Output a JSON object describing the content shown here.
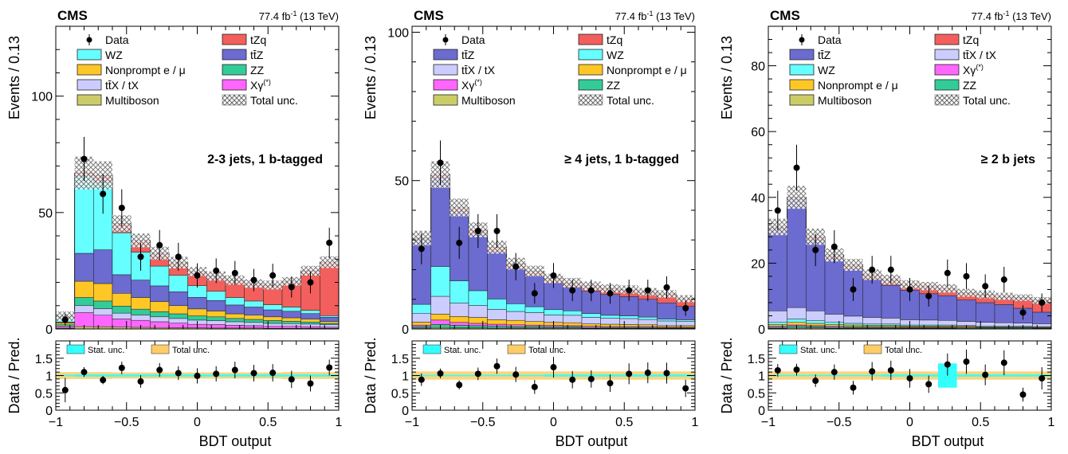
{
  "figure": {
    "experiment": "CMS",
    "lumi": "77.4 fb",
    "lumi_sup": "-1",
    "energy": "(13 TeV)"
  },
  "colors": {
    "tZq": "#f25f5c",
    "ttZ": "#6b6bd0",
    "WZ": "#66ffff",
    "Nonprompt": "#ffc726",
    "ttX": "#ccccff",
    "Xgamma": "#ff66ff",
    "ZZ": "#33cc99",
    "Multiboson": "#cccc66",
    "stat_unc": "#33ffff",
    "total_unc": "#ffcc66"
  },
  "legend_labels": {
    "Data": "Data",
    "tZq": "tZq",
    "ttZ": "tt̄Z",
    "WZ": "WZ",
    "Nonprompt": "Nonprompt e / μ",
    "ttX": "tt̄X / tX",
    "Xgamma": "Xγ",
    "Xgamma_sup": "(*)",
    "ZZ": "ZZ",
    "Multiboson": "Multiboson",
    "TotalUnc": "Total unc.",
    "stat_unc": "Stat. unc.",
    "total_unc": "Total unc."
  },
  "chart_data": [
    {
      "type": "bar",
      "region": "2-3 jets, 1 b-tagged",
      "xlabel": "BDT output",
      "ylabel": "Events / 0.13",
      "ratio_ylabel": "Data / Pred.",
      "xlim": [
        -1,
        1
      ],
      "ylim": [
        0,
        130
      ],
      "yticks": [
        0,
        50,
        100
      ],
      "ratio_ylim": [
        0,
        2
      ],
      "ratio_yticks": [
        0,
        0.5,
        1,
        1.5
      ],
      "xticks": [
        -1,
        -0.5,
        0,
        0.5,
        1
      ],
      "bin_edges": [
        -1.0,
        -0.867,
        -0.733,
        -0.6,
        -0.467,
        -0.333,
        -0.2,
        -0.067,
        0.067,
        0.2,
        0.333,
        0.467,
        0.6,
        0.733,
        0.867,
        1.0
      ],
      "legend": [
        "Data",
        "tZq",
        "WZ",
        "ttZ",
        "Nonprompt",
        "ZZ",
        "ttX",
        "Xgamma",
        "Multiboson",
        "TotalUnc"
      ],
      "series": [
        {
          "key": "Multiboson",
          "values": [
            0.3,
            1.0,
            0.9,
            0.8,
            0.7,
            0.6,
            0.5,
            0.5,
            0.4,
            0.4,
            0.4,
            0.3,
            0.3,
            0.3,
            0.3
          ]
        },
        {
          "key": "Xgamma",
          "values": [
            0.5,
            6.0,
            5.0,
            3.5,
            3.0,
            2.5,
            2.0,
            1.5,
            1.5,
            1.2,
            1.0,
            0.8,
            0.8,
            0.7,
            0.5
          ]
        },
        {
          "key": "ttX",
          "values": [
            0.5,
            3.0,
            2.8,
            2.5,
            2.3,
            2.1,
            2.0,
            1.8,
            1.7,
            1.5,
            1.4,
            1.3,
            1.2,
            1.1,
            1.0
          ]
        },
        {
          "key": "ZZ",
          "values": [
            0.5,
            3.5,
            3.3,
            3.0,
            2.5,
            2.2,
            2.0,
            1.8,
            1.6,
            1.4,
            1.3,
            1.2,
            1.0,
            0.9,
            0.6
          ]
        },
        {
          "key": "Nonprompt",
          "values": [
            0.8,
            7.0,
            7.5,
            5.5,
            5.0,
            4.4,
            3.5,
            3.0,
            2.5,
            2.0,
            1.8,
            1.6,
            1.5,
            1.2,
            0.8
          ]
        },
        {
          "key": "ttZ",
          "values": [
            0.4,
            12.0,
            14.5,
            8.0,
            7.5,
            6.7,
            6.0,
            5.0,
            4.5,
            3.8,
            3.5,
            3.0,
            2.8,
            2.4,
            1.8
          ]
        },
        {
          "key": "WZ",
          "values": [
            2.0,
            33.0,
            29.0,
            18.0,
            12.0,
            8.5,
            7.0,
            5.0,
            4.0,
            3.2,
            2.6,
            2.2,
            1.8,
            1.4,
            0.7
          ]
        },
        {
          "key": "tZq",
          "values": [
            0.5,
            1.5,
            3.0,
            4.0,
            5.0,
            5.5,
            5.5,
            6.0,
            6.5,
            7.5,
            7.5,
            8.5,
            11.0,
            17.0,
            23.0
          ]
        }
      ],
      "data": {
        "values": [
          4,
          73,
          58,
          52,
          31,
          36,
          31,
          23,
          25,
          24,
          21,
          23,
          18,
          20,
          37
        ],
        "errors": [
          2.5,
          9.5,
          8.5,
          8.0,
          6.0,
          6.5,
          6.0,
          5.2,
          5.3,
          5.2,
          4.8,
          5.0,
          4.5,
          4.7,
          6.5
        ]
      },
      "total_unc": [
        2.0,
        7.0,
        6.0,
        3.5,
        3.0,
        2.8,
        2.5,
        2.0,
        2.0,
        2.0,
        1.8,
        1.9,
        1.9,
        2.1,
        2.5
      ],
      "ratio": {
        "values": [
          0.58,
          1.1,
          0.87,
          1.22,
          0.83,
          1.16,
          1.07,
          0.99,
          1.05,
          1.16,
          1.07,
          1.08,
          0.89,
          0.77,
          1.23
        ],
        "errors": [
          0.35,
          0.14,
          0.12,
          0.18,
          0.18,
          0.2,
          0.2,
          0.22,
          0.22,
          0.24,
          0.24,
          0.25,
          0.25,
          0.23,
          0.23
        ],
        "stat_unc": [
          0.02,
          0.03,
          0.03,
          0.03,
          0.03,
          0.03,
          0.03,
          0.03,
          0.03,
          0.03,
          0.03,
          0.03,
          0.03,
          0.03,
          0.03
        ],
        "total_unc": [
          0.1,
          0.1,
          0.1,
          0.09,
          0.09,
          0.09,
          0.09,
          0.09,
          0.09,
          0.09,
          0.09,
          0.09,
          0.1,
          0.1,
          0.1
        ]
      }
    },
    {
      "type": "bar",
      "region": "≥ 4 jets, 1 b-tagged",
      "xlabel": "BDT output",
      "ylabel": "Events / 0.13",
      "ratio_ylabel": "Data / Pred.",
      "xlim": [
        -1,
        1
      ],
      "ylim": [
        0,
        102
      ],
      "yticks": [
        0,
        50,
        100
      ],
      "ratio_ylim": [
        0,
        2
      ],
      "ratio_yticks": [
        0,
        0.5,
        1,
        1.5
      ],
      "xticks": [
        -1,
        -0.5,
        0,
        0.5,
        1
      ],
      "bin_edges": [
        -1.0,
        -0.867,
        -0.733,
        -0.6,
        -0.467,
        -0.333,
        -0.2,
        -0.067,
        0.067,
        0.2,
        0.333,
        0.467,
        0.6,
        0.733,
        0.867,
        1.0
      ],
      "legend": [
        "Data",
        "tZq",
        "ttZ",
        "WZ",
        "ttX",
        "Nonprompt",
        "Xgamma",
        "ZZ",
        "Multiboson",
        "TotalUnc"
      ],
      "series": [
        {
          "key": "Multiboson",
          "values": [
            0.3,
            0.5,
            0.4,
            0.4,
            0.3,
            0.3,
            0.3,
            0.3,
            0.3,
            0.2,
            0.2,
            0.2,
            0.2,
            0.2,
            0.2
          ]
        },
        {
          "key": "ZZ",
          "values": [
            0.5,
            1.0,
            0.8,
            0.7,
            0.6,
            0.5,
            0.5,
            0.4,
            0.4,
            0.3,
            0.3,
            0.3,
            0.3,
            0.2,
            0.2
          ]
        },
        {
          "key": "Xgamma",
          "values": [
            0.5,
            1.5,
            1.0,
            0.8,
            0.7,
            0.6,
            0.5,
            0.5,
            0.4,
            0.4,
            0.3,
            0.3,
            0.3,
            0.2,
            0.2
          ]
        },
        {
          "key": "Nonprompt",
          "values": [
            1.0,
            2.0,
            2.0,
            2.0,
            1.5,
            1.5,
            1.2,
            1.0,
            1.0,
            0.8,
            0.8,
            0.7,
            0.6,
            0.5,
            0.5
          ]
        },
        {
          "key": "ttX",
          "values": [
            3.0,
            6.0,
            4.5,
            4.0,
            3.5,
            3.0,
            3.0,
            2.5,
            2.5,
            2.2,
            2.0,
            2.0,
            1.8,
            1.6,
            1.5
          ]
        },
        {
          "key": "WZ",
          "values": [
            3.0,
            10.0,
            7.5,
            5.0,
            3.5,
            2.6,
            2.0,
            1.8,
            1.5,
            1.3,
            1.0,
            0.9,
            0.8,
            0.6,
            0.5
          ]
        },
        {
          "key": "ttZ",
          "values": [
            22.0,
            30.0,
            23.5,
            19.0,
            16.0,
            12.0,
            10.5,
            9.0,
            8.0,
            7.5,
            7.0,
            6.5,
            6.0,
            5.5,
            4.5
          ]
        },
        {
          "key": "tZq",
          "values": [
            0.3,
            1.0,
            1.2,
            1.5,
            1.5,
            1.5,
            1.5,
            1.5,
            1.5,
            1.8,
            2.0,
            2.4,
            2.5,
            3.0,
            2.6
          ]
        }
      ],
      "data": {
        "values": [
          27,
          56,
          29,
          33,
          33,
          21,
          12,
          18,
          13,
          13,
          12,
          13,
          13,
          14,
          7
        ],
        "errors": [
          5.2,
          7.5,
          5.4,
          5.7,
          5.7,
          4.6,
          3.5,
          4.2,
          3.6,
          3.6,
          3.5,
          3.6,
          3.6,
          3.7,
          2.6
        ]
      },
      "total_unc": [
        2.5,
        4.5,
        3.0,
        2.5,
        2.2,
        2.0,
        1.8,
        1.6,
        1.6,
        1.5,
        1.4,
        1.4,
        1.3,
        1.3,
        1.2
      ],
      "ratio": {
        "values": [
          0.88,
          1.06,
          0.73,
          1.05,
          1.27,
          1.03,
          0.67,
          1.24,
          0.88,
          0.9,
          0.78,
          1.05,
          1.08,
          1.07,
          0.63
        ],
        "errors": [
          0.18,
          0.14,
          0.13,
          0.18,
          0.22,
          0.22,
          0.2,
          0.3,
          0.25,
          0.25,
          0.25,
          0.3,
          0.3,
          0.3,
          0.25
        ],
        "stat_unc": [
          0.02,
          0.02,
          0.02,
          0.02,
          0.02,
          0.02,
          0.02,
          0.03,
          0.03,
          0.03,
          0.03,
          0.03,
          0.03,
          0.03,
          0.03
        ],
        "total_unc": [
          0.12,
          0.12,
          0.12,
          0.12,
          0.12,
          0.12,
          0.12,
          0.12,
          0.12,
          0.12,
          0.12,
          0.12,
          0.12,
          0.12,
          0.12
        ]
      }
    },
    {
      "type": "bar",
      "region": "≥ 2 b jets",
      "xlabel": "BDT output",
      "ylabel": "Events / 0.13",
      "ratio_ylabel": "Data / Pred.",
      "xlim": [
        -1,
        1
      ],
      "ylim": [
        0,
        92
      ],
      "yticks": [
        0,
        20,
        40,
        60,
        80
      ],
      "ratio_ylim": [
        0,
        2
      ],
      "ratio_yticks": [
        0,
        0.5,
        1,
        1.5
      ],
      "xticks": [
        -1,
        -0.5,
        0,
        0.5,
        1
      ],
      "bin_edges": [
        -1.0,
        -0.867,
        -0.733,
        -0.6,
        -0.467,
        -0.333,
        -0.2,
        -0.067,
        0.067,
        0.2,
        0.333,
        0.467,
        0.6,
        0.733,
        0.867,
        1.0
      ],
      "legend": [
        "Data",
        "tZq",
        "ttZ",
        "ttX",
        "WZ",
        "Xgamma",
        "Nonprompt",
        "ZZ",
        "Multiboson",
        "TotalUnc"
      ],
      "series": [
        {
          "key": "Multiboson",
          "values": [
            0.2,
            0.3,
            0.3,
            0.2,
            0.2,
            0.2,
            0.2,
            0.2,
            0.2,
            0.2,
            0.1,
            0.1,
            0.1,
            0.1,
            0.1
          ]
        },
        {
          "key": "ZZ",
          "values": [
            0.3,
            0.5,
            0.4,
            0.3,
            0.3,
            0.3,
            0.3,
            0.2,
            0.2,
            0.2,
            0.2,
            0.2,
            0.2,
            0.2,
            0.1
          ]
        },
        {
          "key": "Xgamma",
          "values": [
            0.3,
            0.4,
            0.3,
            0.3,
            0.2,
            0.2,
            0.2,
            0.2,
            0.2,
            0.2,
            0.2,
            0.1,
            0.1,
            0.1,
            0.1
          ]
        },
        {
          "key": "Nonprompt",
          "values": [
            0.5,
            0.8,
            0.7,
            0.5,
            0.5,
            0.4,
            0.4,
            0.3,
            0.3,
            0.3,
            0.3,
            0.2,
            0.2,
            0.2,
            0.2
          ]
        },
        {
          "key": "WZ",
          "values": [
            0.7,
            1.0,
            0.8,
            0.7,
            0.5,
            0.4,
            0.4,
            0.3,
            0.3,
            0.3,
            0.2,
            0.2,
            0.2,
            0.2,
            0.2
          ]
        },
        {
          "key": "ttX",
          "values": [
            3.5,
            3.5,
            3.0,
            2.5,
            2.2,
            2.0,
            1.8,
            1.6,
            1.5,
            1.4,
            1.3,
            1.2,
            1.1,
            1.0,
            0.9
          ]
        },
        {
          "key": "ttZ",
          "values": [
            25.0,
            33.0,
            21.5,
            17.0,
            14.5,
            11.5,
            10.0,
            9.0,
            8.0,
            7.5,
            6.5,
            6.0,
            5.5,
            4.5,
            3.5
          ]
        },
        {
          "key": "tZq",
          "values": [
            0.5,
            0.5,
            1.0,
            1.0,
            1.1,
            1.5,
            1.7,
            1.7,
            2.3,
            2.2,
            2.2,
            2.5,
            2.5,
            3.2,
            3.6
          ]
        }
      ],
      "data": {
        "values": [
          36,
          49,
          24,
          25,
          12,
          18,
          18,
          12,
          10,
          17,
          16,
          13,
          15,
          5,
          8
        ],
        "errors": [
          6.0,
          7.0,
          4.9,
          5.0,
          3.5,
          4.2,
          4.2,
          3.5,
          3.2,
          4.1,
          4.0,
          3.6,
          3.9,
          2.2,
          2.8
        ]
      },
      "total_unc": [
        2.5,
        3.5,
        2.5,
        2.0,
        1.8,
        1.6,
        1.5,
        1.3,
        1.3,
        1.3,
        1.2,
        1.2,
        1.1,
        1.0,
        1.0
      ],
      "ratio": {
        "values": [
          1.15,
          1.17,
          0.85,
          1.1,
          0.65,
          1.12,
          1.15,
          0.92,
          0.75,
          1.32,
          1.4,
          1.02,
          1.37,
          0.45,
          0.92
        ],
        "errors": [
          0.18,
          0.17,
          0.18,
          0.22,
          0.2,
          0.27,
          0.28,
          0.27,
          0.25,
          0.32,
          0.35,
          0.3,
          0.36,
          0.2,
          0.32
        ],
        "stat_unc": [
          0.02,
          0.02,
          0.02,
          0.02,
          0.02,
          0.02,
          0.03,
          0.03,
          0.03,
          0.35,
          0.03,
          0.03,
          0.03,
          0.03,
          0.03
        ],
        "total_unc": [
          0.12,
          0.12,
          0.12,
          0.12,
          0.12,
          0.12,
          0.12,
          0.12,
          0.12,
          0.12,
          0.12,
          0.12,
          0.12,
          0.12,
          0.12
        ]
      }
    }
  ]
}
